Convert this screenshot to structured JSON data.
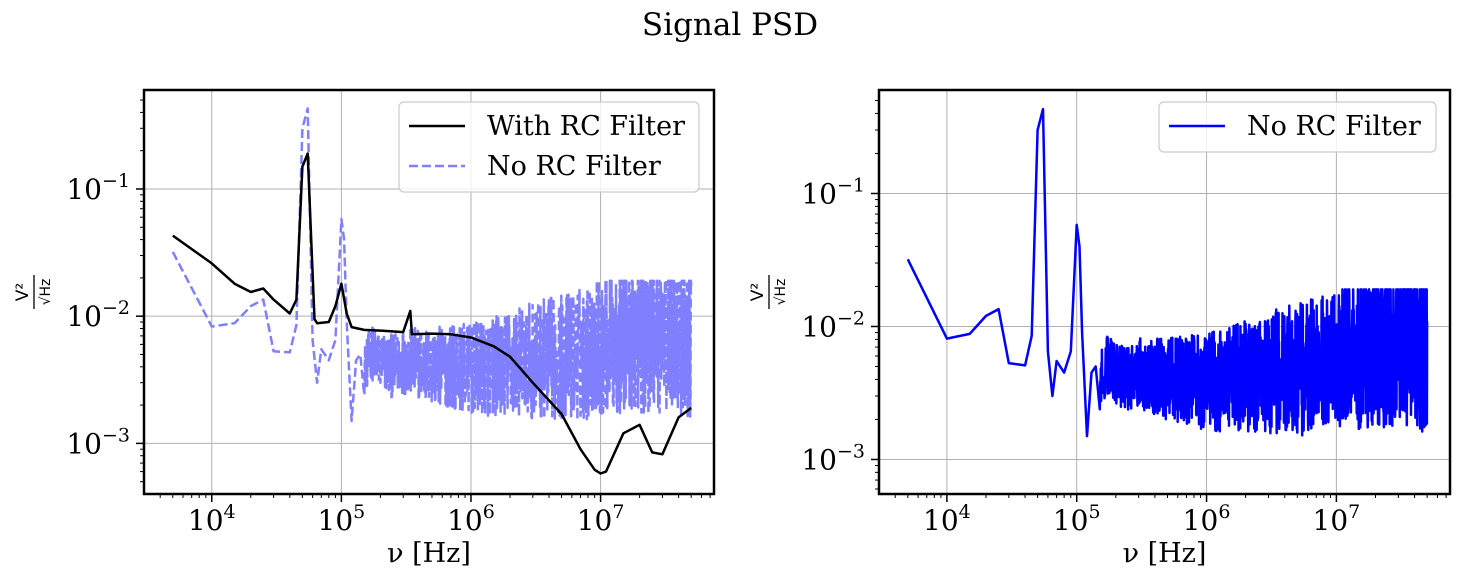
{
  "figure": {
    "title": "Signal PSD"
  },
  "chart_data": [
    {
      "type": "line",
      "xscale": "log",
      "yscale": "log",
      "xlabel": "ν [Hz]",
      "ylabel_numerator": "V²",
      "ylabel_denominator": "√Hz",
      "xlim": [
        3000,
        75000000
      ],
      "ylim": [
        0.0004,
        0.6
      ],
      "xticks": [
        10000,
        100000,
        1000000,
        10000000
      ],
      "xtick_labels": [
        {
          "base": "10",
          "exp": "4"
        },
        {
          "base": "10",
          "exp": "5"
        },
        {
          "base": "10",
          "exp": "6"
        },
        {
          "base": "10",
          "exp": "7"
        }
      ],
      "yticks": [
        0.001,
        0.01,
        0.1
      ],
      "ytick_labels": [
        {
          "base": "10",
          "exp": "−3"
        },
        {
          "base": "10",
          "exp": "−2"
        },
        {
          "base": "10",
          "exp": "−1"
        }
      ],
      "grid": true,
      "legend_position": "top-right",
      "series": [
        {
          "name": "No RC Filter",
          "color": "#8080ff",
          "style": "dashed",
          "x": [
            5000,
            10000,
            15000,
            20000,
            25000,
            30000,
            40000,
            45000,
            50000,
            55000,
            60000,
            65000,
            70000,
            80000,
            90000,
            100000,
            105000,
            110000,
            120000,
            130000,
            140000,
            150000,
            170000,
            200000,
            250000,
            300000,
            400000,
            500000,
            700000,
            1000000,
            1500000,
            2000000,
            3000000,
            5000000,
            7000000,
            10000000,
            15000000,
            20000000,
            30000000,
            50000000
          ],
          "y": [
            0.032,
            0.0083,
            0.0088,
            0.012,
            0.0135,
            0.0053,
            0.0052,
            0.0085,
            0.3,
            0.43,
            0.0065,
            0.003,
            0.0055,
            0.0045,
            0.0065,
            0.058,
            0.04,
            0.009,
            0.0015,
            0.0045,
            0.005,
            0.0038,
            0.0052,
            0.0045,
            0.004,
            0.0045,
            0.0042,
            0.004,
            0.004,
            0.0038,
            0.004,
            0.0042,
            0.0045,
            0.0048,
            0.005,
            0.006,
            0.0065,
            0.007,
            0.0075,
            0.0078
          ],
          "noise_band_from_x": 150000,
          "noise_band_min": 0.00078,
          "noise_band_max": 0.019
        },
        {
          "name": "With RC Filter",
          "color": "#000000",
          "style": "solid",
          "x": [
            5000,
            10000,
            15000,
            20000,
            25000,
            30000,
            40000,
            45000,
            50000,
            55000,
            58000,
            62000,
            65000,
            80000,
            90000,
            100000,
            110000,
            120000,
            150000,
            200000,
            300000,
            340000,
            350000,
            500000,
            700000,
            1000000,
            1500000,
            2000000,
            3000000,
            5000000,
            7000000,
            9000000,
            10000000,
            11000000,
            15000000,
            20000000,
            25000000,
            30000000,
            40000000,
            50000000
          ],
          "y": [
            0.043,
            0.026,
            0.018,
            0.0155,
            0.0165,
            0.0135,
            0.0105,
            0.0135,
            0.15,
            0.19,
            0.05,
            0.0095,
            0.0088,
            0.009,
            0.012,
            0.018,
            0.0105,
            0.0082,
            0.0078,
            0.0077,
            0.0075,
            0.011,
            0.0072,
            0.0073,
            0.0072,
            0.0068,
            0.0058,
            0.0048,
            0.003,
            0.0017,
            0.0009,
            0.00062,
            0.00058,
            0.0006,
            0.0012,
            0.0014,
            0.00085,
            0.00082,
            0.0016,
            0.0019
          ]
        }
      ]
    },
    {
      "type": "line",
      "xscale": "log",
      "yscale": "log",
      "xlabel": "ν [Hz]",
      "ylabel_numerator": "V²",
      "ylabel_denominator": "√Hz",
      "xlim": [
        3000,
        75000000
      ],
      "ylim": [
        0.00055,
        0.6
      ],
      "xticks": [
        10000,
        100000,
        1000000,
        10000000
      ],
      "xtick_labels": [
        {
          "base": "10",
          "exp": "4"
        },
        {
          "base": "10",
          "exp": "5"
        },
        {
          "base": "10",
          "exp": "6"
        },
        {
          "base": "10",
          "exp": "7"
        }
      ],
      "yticks": [
        0.001,
        0.01,
        0.1
      ],
      "ytick_labels": [
        {
          "base": "10",
          "exp": "−3"
        },
        {
          "base": "10",
          "exp": "−2"
        },
        {
          "base": "10",
          "exp": "−1"
        }
      ],
      "grid": true,
      "legend_position": "top-right",
      "series": [
        {
          "name": "No RC Filter",
          "color": "#0000ff",
          "style": "solid",
          "x": [
            5000,
            10000,
            15000,
            20000,
            25000,
            30000,
            40000,
            45000,
            50000,
            55000,
            60000,
            65000,
            70000,
            80000,
            90000,
            100000,
            105000,
            110000,
            120000,
            130000,
            140000,
            150000,
            170000,
            200000,
            250000,
            300000,
            400000,
            500000,
            700000,
            1000000,
            1500000,
            2000000,
            3000000,
            5000000,
            7000000,
            10000000,
            15000000,
            20000000,
            30000000,
            50000000
          ],
          "y": [
            0.032,
            0.0081,
            0.0088,
            0.012,
            0.0135,
            0.0053,
            0.0051,
            0.0085,
            0.3,
            0.43,
            0.0065,
            0.003,
            0.0055,
            0.0045,
            0.0065,
            0.058,
            0.04,
            0.009,
            0.0015,
            0.0045,
            0.005,
            0.0038,
            0.0052,
            0.0045,
            0.004,
            0.0045,
            0.0042,
            0.004,
            0.004,
            0.0038,
            0.004,
            0.0042,
            0.0045,
            0.0048,
            0.005,
            0.006,
            0.0065,
            0.007,
            0.0075,
            0.0078
          ],
          "noise_band_from_x": 150000,
          "noise_band_min": 0.00075,
          "noise_band_max": 0.019
        }
      ]
    }
  ]
}
